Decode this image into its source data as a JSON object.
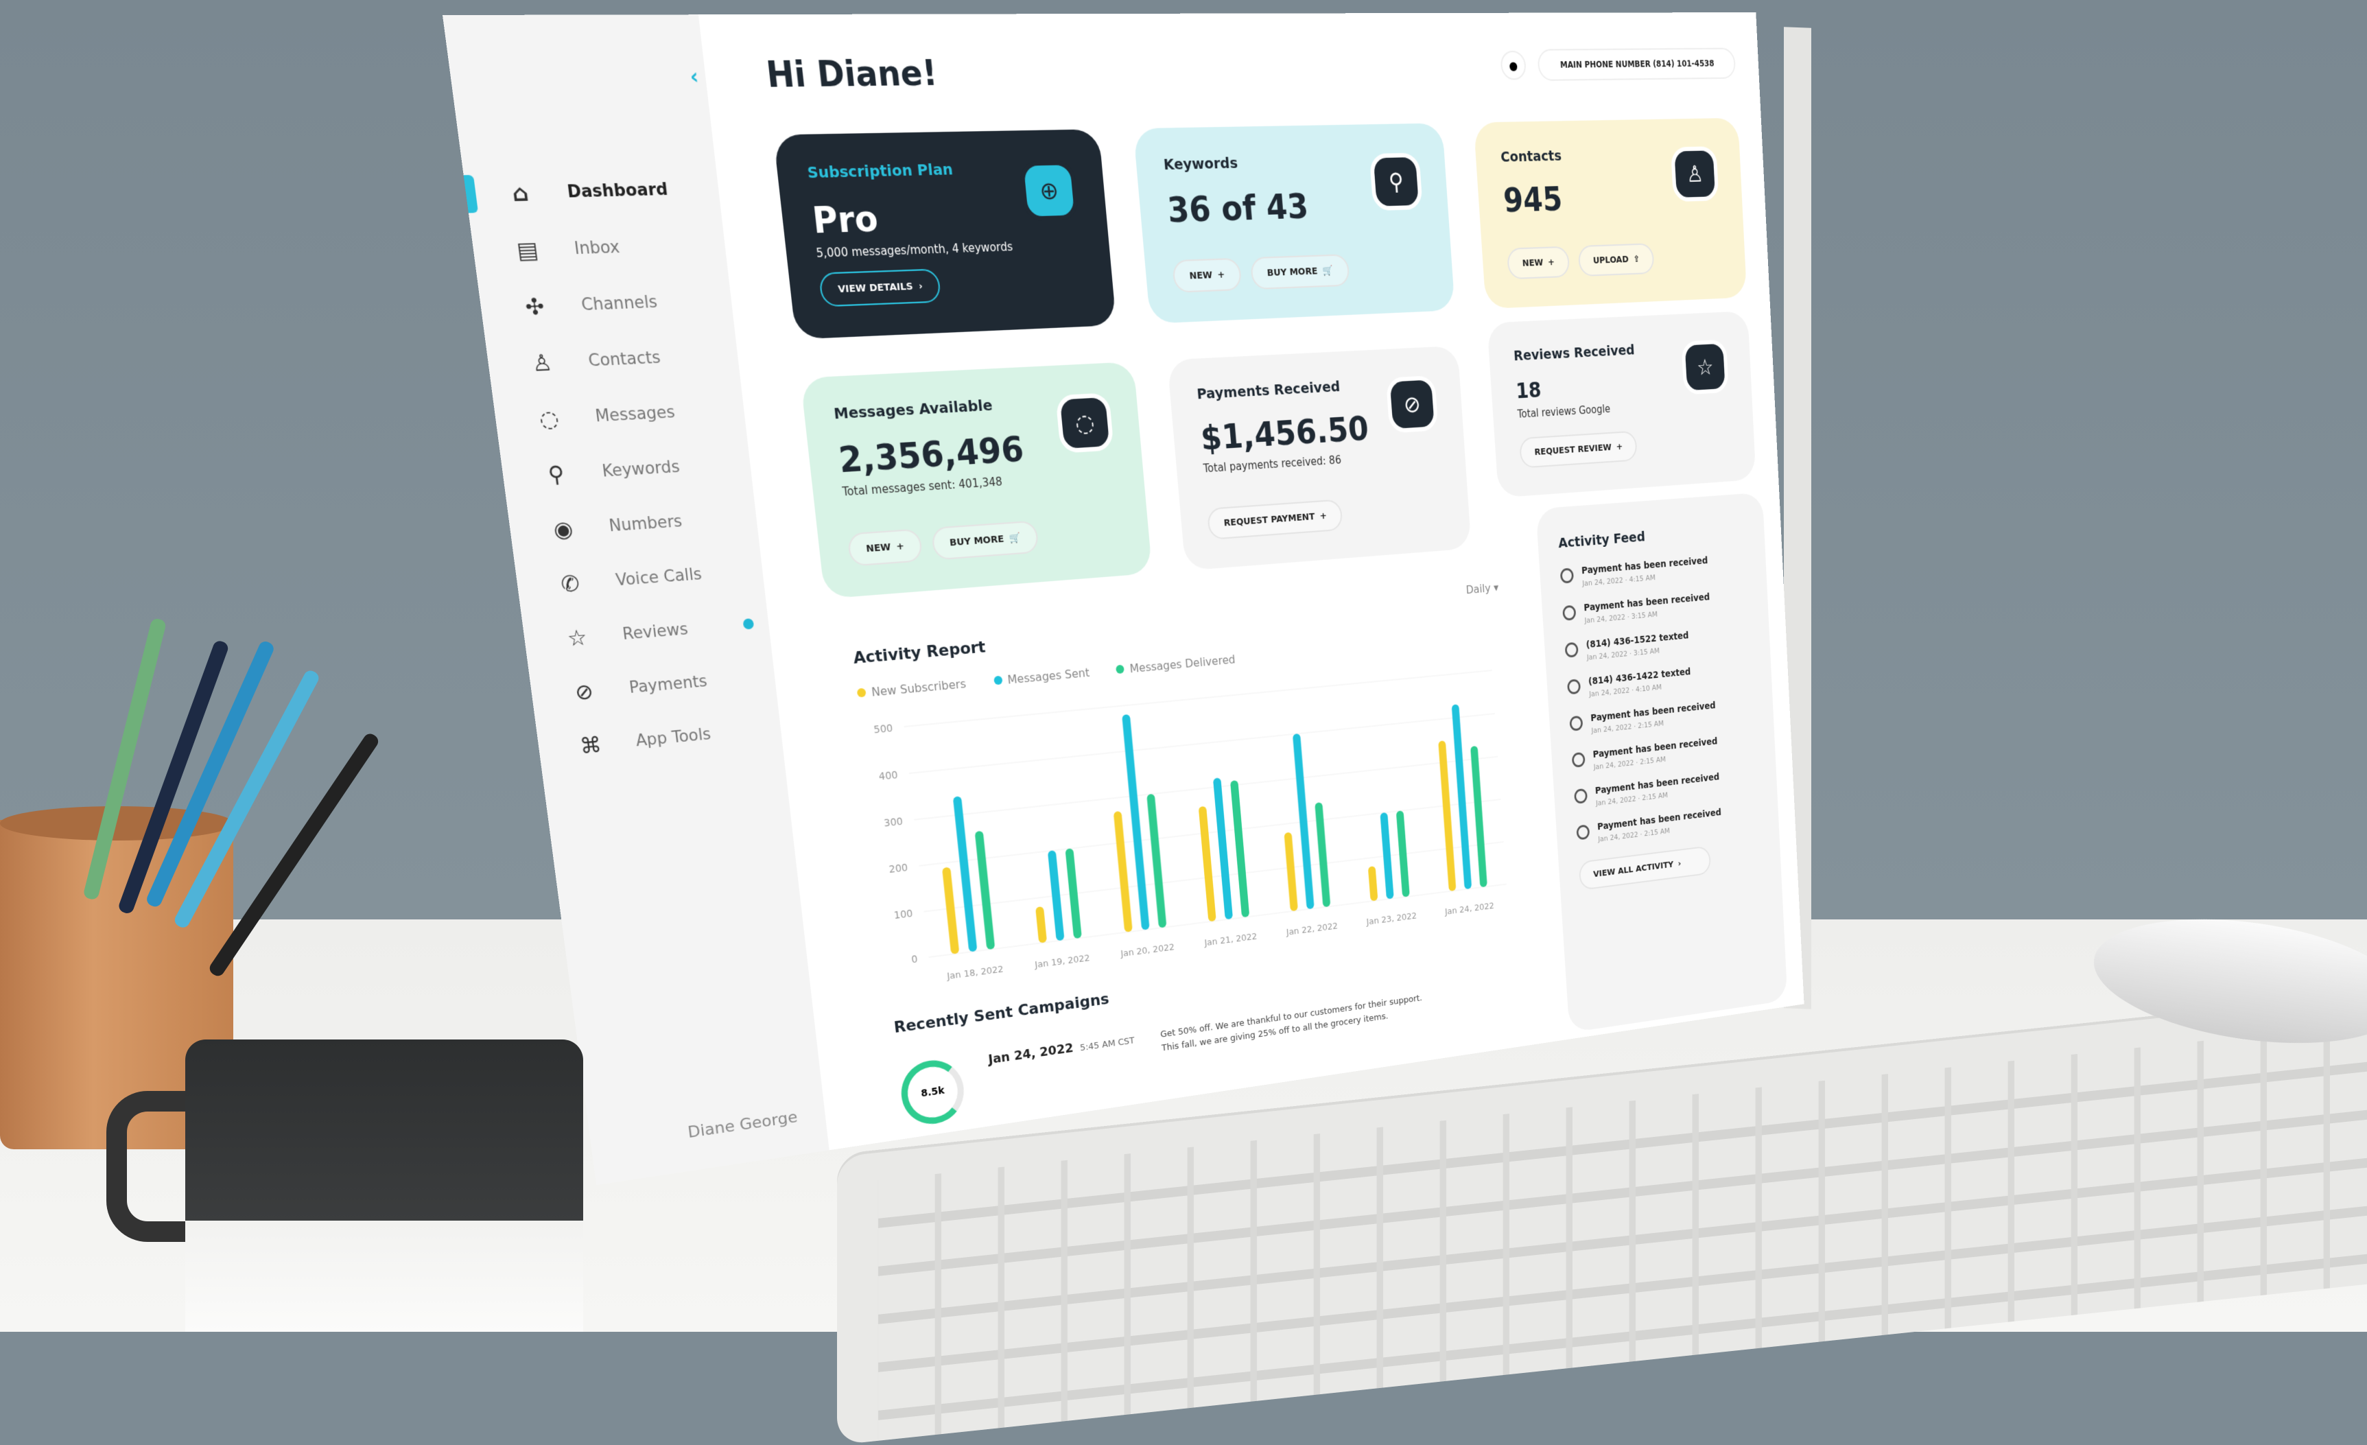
{
  "header": {
    "greeting": "Hi Diane!",
    "phone_label": "MAIN PHONE NUMBER (814) 101-4538"
  },
  "sidebar": {
    "items": [
      {
        "label": "Dashboard",
        "icon": "home-icon",
        "glyph": "⌂",
        "active": true
      },
      {
        "label": "Inbox",
        "icon": "inbox-icon",
        "glyph": "▤"
      },
      {
        "label": "Channels",
        "icon": "channels-icon",
        "glyph": "✣"
      },
      {
        "label": "Contacts",
        "icon": "user-icon",
        "glyph": "♙"
      },
      {
        "label": "Messages",
        "icon": "message-icon",
        "glyph": "◌"
      },
      {
        "label": "Keywords",
        "icon": "key-icon",
        "glyph": "⚲"
      },
      {
        "label": "Numbers",
        "icon": "numbers-icon",
        "glyph": "◉"
      },
      {
        "label": "Voice Calls",
        "icon": "phone-icon",
        "glyph": "✆"
      },
      {
        "label": "Reviews",
        "icon": "star-icon",
        "glyph": "☆",
        "badge": true
      },
      {
        "label": "Payments",
        "icon": "payment-icon",
        "glyph": "⊘"
      },
      {
        "label": "App Tools",
        "icon": "apps-icon",
        "glyph": "⌘"
      }
    ],
    "user": "Diane George"
  },
  "cards": {
    "subscription": {
      "label": "Subscription Plan",
      "value": "Pro",
      "sub": "5,000 messages/month, 4 keywords",
      "button": "VIEW DETAILS",
      "icon": "globe-icon"
    },
    "keywords": {
      "label": "Keywords",
      "value": "36 of 43",
      "new": "NEW",
      "buy": "BUY MORE",
      "icon": "key-icon"
    },
    "contacts": {
      "label": "Contacts",
      "value": "945",
      "new": "NEW",
      "upload": "UPLOAD",
      "icon": "user-icon"
    },
    "messages": {
      "label": "Messages Available",
      "value": "2,356,496",
      "sub": "Total messages sent: 401,348",
      "new": "NEW",
      "buy": "BUY MORE",
      "icon": "message-icon"
    },
    "payments": {
      "label": "Payments Received",
      "value": "$1,456.50",
      "sub": "Total payments received: 86",
      "button": "REQUEST PAYMENT",
      "icon": "payment-icon"
    },
    "reviews": {
      "label": "Reviews Received",
      "value": "18",
      "sub": "Total reviews Google",
      "button": "REQUEST REVIEW",
      "icon": "star-icon"
    }
  },
  "colors": {
    "accent": "#2bc0dc",
    "dark": "#1f2933",
    "yellow": "#f6d02f",
    "blue": "#1fc2dc",
    "green": "#2ecc8f",
    "keywords_bg": "#d3f1f4",
    "contacts_bg": "#fbf4d4",
    "messages_bg": "#d8f3e6"
  },
  "chart_data": {
    "type": "bar",
    "title": "Activity Report",
    "period": "Daily",
    "categories": [
      "Jan 18, 2022",
      "Jan 19, 2022",
      "Jan 20, 2022",
      "Jan 21, 2022",
      "Jan 22, 2022",
      "Jan 23, 2022",
      "Jan 24, 2022"
    ],
    "series": [
      {
        "name": "New Subscribers",
        "color": "#f6d02f",
        "values": [
          190,
          80,
          270,
          260,
          180,
          80,
          350
        ]
      },
      {
        "name": "Messages Sent",
        "color": "#1fc2dc",
        "values": [
          340,
          200,
          480,
          320,
          400,
          200,
          430
        ]
      },
      {
        "name": "Messages Delivered",
        "color": "#2ecc8f",
        "values": [
          260,
          200,
          300,
          310,
          240,
          200,
          330
        ]
      }
    ],
    "yticks": [
      "0",
      "100",
      "200",
      "300",
      "400",
      "500"
    ],
    "ylim": [
      0,
      500
    ],
    "grid": true,
    "legend": "top-left"
  },
  "feed": {
    "title": "Activity Feed",
    "items": [
      {
        "text": "Payment has been received",
        "date": "Jan 24, 2022 · 4:15 AM"
      },
      {
        "text": "Payment has been received",
        "date": "Jan 24, 2022 · 3:15 AM"
      },
      {
        "text": "(814) 436-1522 texted",
        "date": "Jan 24, 2022 · 3:15 AM"
      },
      {
        "text": "(814) 436-1422 texted",
        "date": "Jan 24, 2022 · 4:10 AM"
      },
      {
        "text": "Payment has been received",
        "date": "Jan 24, 2022 · 2:15 AM"
      },
      {
        "text": "Payment has been received",
        "date": "Jan 24, 2022 · 2:15 AM"
      },
      {
        "text": "Payment has been received",
        "date": "Jan 24, 2022 · 2:15 AM"
      },
      {
        "text": "Payment has been received",
        "date": "Jan 24, 2022 · 2:15 AM"
      }
    ],
    "button": "VIEW ALL ACTIVITY"
  },
  "campaigns": {
    "title": "Recently Sent Campaigns",
    "date": "Jan 24, 2022",
    "time": "5:45 AM CST",
    "text": "Get 50% off. We are thankful to our customers for their support. This fall, we are giving 25% off to all the grocery items.",
    "ring": "8.5k"
  }
}
